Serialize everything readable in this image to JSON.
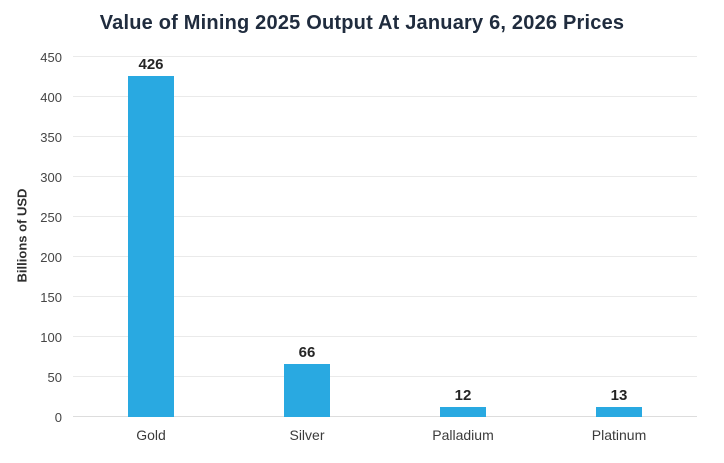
{
  "chart_data": {
    "type": "bar",
    "title": "Value of Mining 2025 Output At January 6, 2026 Prices",
    "ylabel": "Billions of USD",
    "xlabel": "",
    "categories": [
      "Gold",
      "Silver",
      "Palladium",
      "Platinum"
    ],
    "values": [
      426,
      66,
      12,
      13
    ],
    "value_labels": [
      "426",
      "66",
      "12",
      "13"
    ],
    "ylim": [
      0,
      450
    ],
    "yticks": [
      0,
      50,
      100,
      150,
      200,
      250,
      300,
      350,
      400,
      450
    ],
    "grid": "horizontal only",
    "legend": "none",
    "colors": {
      "bar": "#29a9e1",
      "title": "#202c3e",
      "tick_text": "#454545",
      "category_text": "#3b3b3b",
      "grid_line": "#eaeaea",
      "background": "#ffffff"
    }
  }
}
